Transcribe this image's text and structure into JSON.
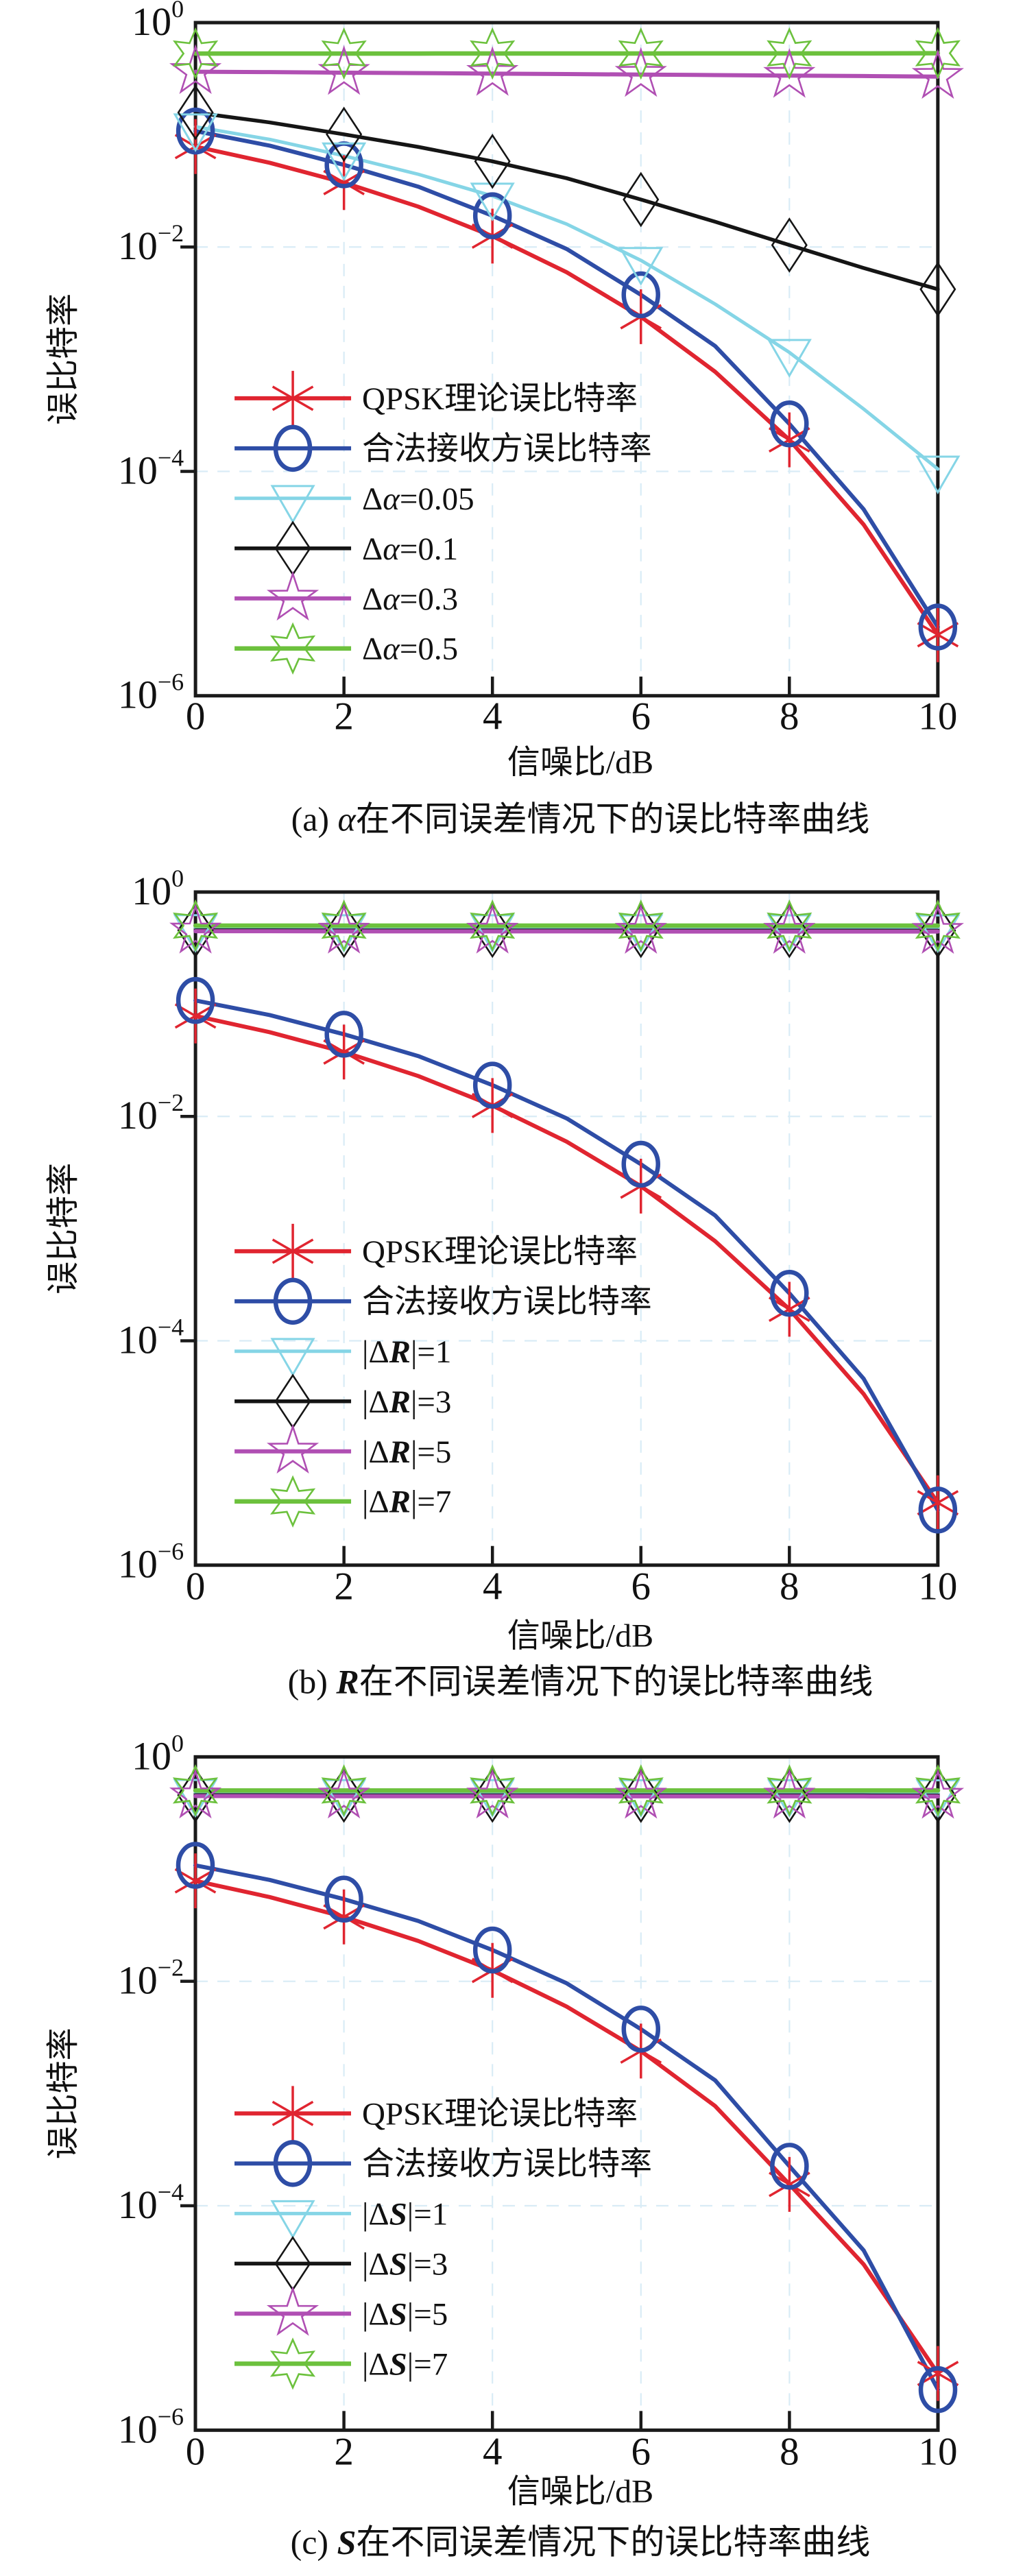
{
  "figure_title": "",
  "accent_colors": {
    "qpsk_red": "#e02530",
    "legit_blue": "#2e4da6",
    "cyan": "#85d5e6",
    "black": "#151515",
    "magenta": "#b04fb3",
    "green": "#6cc13d",
    "frame": "#1a1a1a",
    "grid": "#d9ecf6"
  },
  "chart_data": [
    {
      "type": "line",
      "caption": {
        "prefix": "(a) ",
        "variable": "α",
        "variable_bold": false,
        "rest": "在不同误差情况下的误比特率曲线"
      },
      "xlabel": "信噪比/dB",
      "ylabel": "误比特率",
      "x": [
        0,
        1,
        2,
        3,
        4,
        5,
        6,
        7,
        8,
        9,
        10
      ],
      "xticks": [
        "0",
        "2",
        "4",
        "6",
        "8",
        "10"
      ],
      "ytick_exponents": [
        "0",
        "−2",
        "−4",
        "−6"
      ],
      "xlim": [
        0,
        10
      ],
      "ylim": [
        1e-06,
        1
      ],
      "yscale": "log",
      "grid": "dashed-light-major",
      "legend_position": "lower-left-inside",
      "series": [
        {
          "label": {
            "text": "QPSK理论误比特率"
          },
          "color": "#e02530",
          "marker": "asterisk",
          "values": [
            0.0786,
            0.0563,
            0.0375,
            0.0229,
            0.0125,
            0.00595,
            0.00239,
            0.000773,
            0.000191,
            3.36e-05,
            3.5e-06
          ]
        },
        {
          "label": {
            "text": "合法接收方误比特率"
          },
          "color": "#2e4da6",
          "marker": "circle",
          "values": [
            0.108,
            0.08,
            0.054,
            0.0345,
            0.019,
            0.0096,
            0.00375,
            0.00131,
            0.000265,
            4.6e-05,
            4.1e-06
          ]
        },
        {
          "label": {
            "prefix": "Δ",
            "variable": "α",
            "variable_bold": false,
            "suffix": "=0.05"
          },
          "color": "#85d5e6",
          "marker": "triangle-down",
          "values": [
            0.118,
            0.091,
            0.065,
            0.0445,
            0.0285,
            0.016,
            0.0076,
            0.0031,
            0.00115,
            0.00036,
            0.000105
          ]
        },
        {
          "label": {
            "prefix": "Δ",
            "variable": "α",
            "variable_bold": false,
            "suffix": "=0.1"
          },
          "color": "#151515",
          "marker": "diamond",
          "values": [
            0.158,
            0.129,
            0.101,
            0.078,
            0.058,
            0.041,
            0.0265,
            0.0168,
            0.0104,
            0.0065,
            0.0042
          ]
        },
        {
          "label": {
            "prefix": "Δ",
            "variable": "α",
            "variable_bold": false,
            "suffix": "=0.3"
          },
          "color": "#b04fb3",
          "marker": "star5",
          "values": [
            0.365,
            0.362,
            0.358,
            0.355,
            0.351,
            0.348,
            0.344,
            0.341,
            0.337,
            0.334,
            0.33
          ]
        },
        {
          "label": {
            "prefix": "Δ",
            "variable": "α",
            "variable_bold": false,
            "suffix": "=0.5"
          },
          "color": "#6cc13d",
          "marker": "star6",
          "values": [
            0.53,
            0.53,
            0.53,
            0.53,
            0.531,
            0.531,
            0.531,
            0.532,
            0.532,
            0.532,
            0.533
          ]
        }
      ]
    },
    {
      "type": "line",
      "caption": {
        "prefix": "(b) ",
        "variable": "R",
        "variable_bold": true,
        "rest": "在不同误差情况下的误比特率曲线"
      },
      "xlabel": "信噪比/dB",
      "ylabel": "误比特率",
      "x": [
        0,
        1,
        2,
        3,
        4,
        5,
        6,
        7,
        8,
        9,
        10
      ],
      "xticks": [
        "0",
        "2",
        "4",
        "6",
        "8",
        "10"
      ],
      "ytick_exponents": [
        "0",
        "−2",
        "−4",
        "−6"
      ],
      "xlim": [
        0,
        10
      ],
      "ylim": [
        1e-06,
        1
      ],
      "yscale": "log",
      "grid": "dashed-light-major",
      "legend_position": "lower-left-inside",
      "series": [
        {
          "label": {
            "text": "QPSK理论误比特率"
          },
          "color": "#e02530",
          "marker": "asterisk",
          "values": [
            0.0786,
            0.0563,
            0.0375,
            0.0229,
            0.0125,
            0.00595,
            0.00239,
            0.000773,
            0.000191,
            3.36e-05,
            3.6e-06
          ]
        },
        {
          "label": {
            "text": "合法接收方误比特率"
          },
          "color": "#2e4da6",
          "marker": "circle",
          "values": [
            0.108,
            0.08,
            0.054,
            0.0345,
            0.019,
            0.0096,
            0.00375,
            0.00131,
            0.000265,
            4.6e-05,
            3.1e-06
          ]
        },
        {
          "label": {
            "prefix": "|Δ",
            "variable": "R",
            "variable_bold": true,
            "suffix": "|=1"
          },
          "color": "#85d5e6",
          "marker": "triangle-down",
          "values": [
            0.483,
            0.483,
            0.482,
            0.482,
            0.482,
            0.482,
            0.481,
            0.481,
            0.481,
            0.481,
            0.48
          ]
        },
        {
          "label": {
            "prefix": "|Δ",
            "variable": "R",
            "variable_bold": true,
            "suffix": "|=3"
          },
          "color": "#151515",
          "marker": "diamond",
          "values": [
            0.456,
            0.456,
            0.455,
            0.455,
            0.455,
            0.455,
            0.454,
            0.454,
            0.454,
            0.454,
            0.453
          ]
        },
        {
          "label": {
            "prefix": "|Δ",
            "variable": "R",
            "variable_bold": true,
            "suffix": "|=5"
          },
          "color": "#b04fb3",
          "marker": "star5",
          "values": [
            0.447,
            0.447,
            0.446,
            0.446,
            0.446,
            0.446,
            0.445,
            0.445,
            0.445,
            0.445,
            0.444
          ]
        },
        {
          "label": {
            "prefix": "|Δ",
            "variable": "R",
            "variable_bold": true,
            "suffix": "|=7"
          },
          "color": "#6cc13d",
          "marker": "star6",
          "values": [
            0.502,
            0.502,
            0.502,
            0.502,
            0.502,
            0.502,
            0.502,
            0.502,
            0.502,
            0.502,
            0.502
          ]
        }
      ]
    },
    {
      "type": "line",
      "caption": {
        "prefix": "(c) ",
        "variable": "S",
        "variable_bold": true,
        "rest": "在不同误差情况下的误比特率曲线"
      },
      "xlabel": "信噪比/dB",
      "ylabel": "误比特率",
      "x": [
        0,
        1,
        2,
        3,
        4,
        5,
        6,
        7,
        8,
        9,
        10
      ],
      "xticks": [
        "0",
        "2",
        "4",
        "6",
        "8",
        "10"
      ],
      "ytick_exponents": [
        "0",
        "−2",
        "−4",
        "−6"
      ],
      "xlim": [
        0,
        10
      ],
      "ylim": [
        1e-06,
        1
      ],
      "yscale": "log",
      "grid": "dashed-light-major",
      "legend_position": "lower-left-inside",
      "series": [
        {
          "label": {
            "text": "QPSK理论误比特率"
          },
          "color": "#e02530",
          "marker": "asterisk",
          "values": [
            0.0786,
            0.0563,
            0.0375,
            0.0229,
            0.0125,
            0.00595,
            0.00239,
            0.000773,
            0.000155,
            3e-05,
            3.2e-06
          ]
        },
        {
          "label": {
            "text": "合法接收方误比特率"
          },
          "color": "#2e4da6",
          "marker": "circle",
          "values": [
            0.108,
            0.08,
            0.054,
            0.0345,
            0.019,
            0.0096,
            0.00375,
            0.00131,
            0.000225,
            4e-05,
            2.3e-06
          ]
        },
        {
          "label": {
            "prefix": "|Δ",
            "variable": "S",
            "variable_bold": true,
            "suffix": "|=1"
          },
          "color": "#85d5e6",
          "marker": "triangle-down",
          "values": [
            0.483,
            0.483,
            0.482,
            0.482,
            0.482,
            0.482,
            0.481,
            0.481,
            0.481,
            0.481,
            0.48
          ]
        },
        {
          "label": {
            "prefix": "|Δ",
            "variable": "S",
            "variable_bold": true,
            "suffix": "|=3"
          },
          "color": "#151515",
          "marker": "diamond",
          "values": [
            0.456,
            0.456,
            0.455,
            0.455,
            0.455,
            0.455,
            0.454,
            0.454,
            0.454,
            0.454,
            0.453
          ]
        },
        {
          "label": {
            "prefix": "|Δ",
            "variable": "S",
            "variable_bold": true,
            "suffix": "|=5"
          },
          "color": "#b04fb3",
          "marker": "star5",
          "values": [
            0.447,
            0.447,
            0.446,
            0.446,
            0.446,
            0.446,
            0.445,
            0.445,
            0.445,
            0.445,
            0.444
          ]
        },
        {
          "label": {
            "prefix": "|Δ",
            "variable": "S",
            "variable_bold": true,
            "suffix": "|=7"
          },
          "color": "#6cc13d",
          "marker": "star6",
          "values": [
            0.502,
            0.502,
            0.502,
            0.502,
            0.502,
            0.502,
            0.502,
            0.502,
            0.502,
            0.502,
            0.502
          ]
        }
      ]
    }
  ]
}
